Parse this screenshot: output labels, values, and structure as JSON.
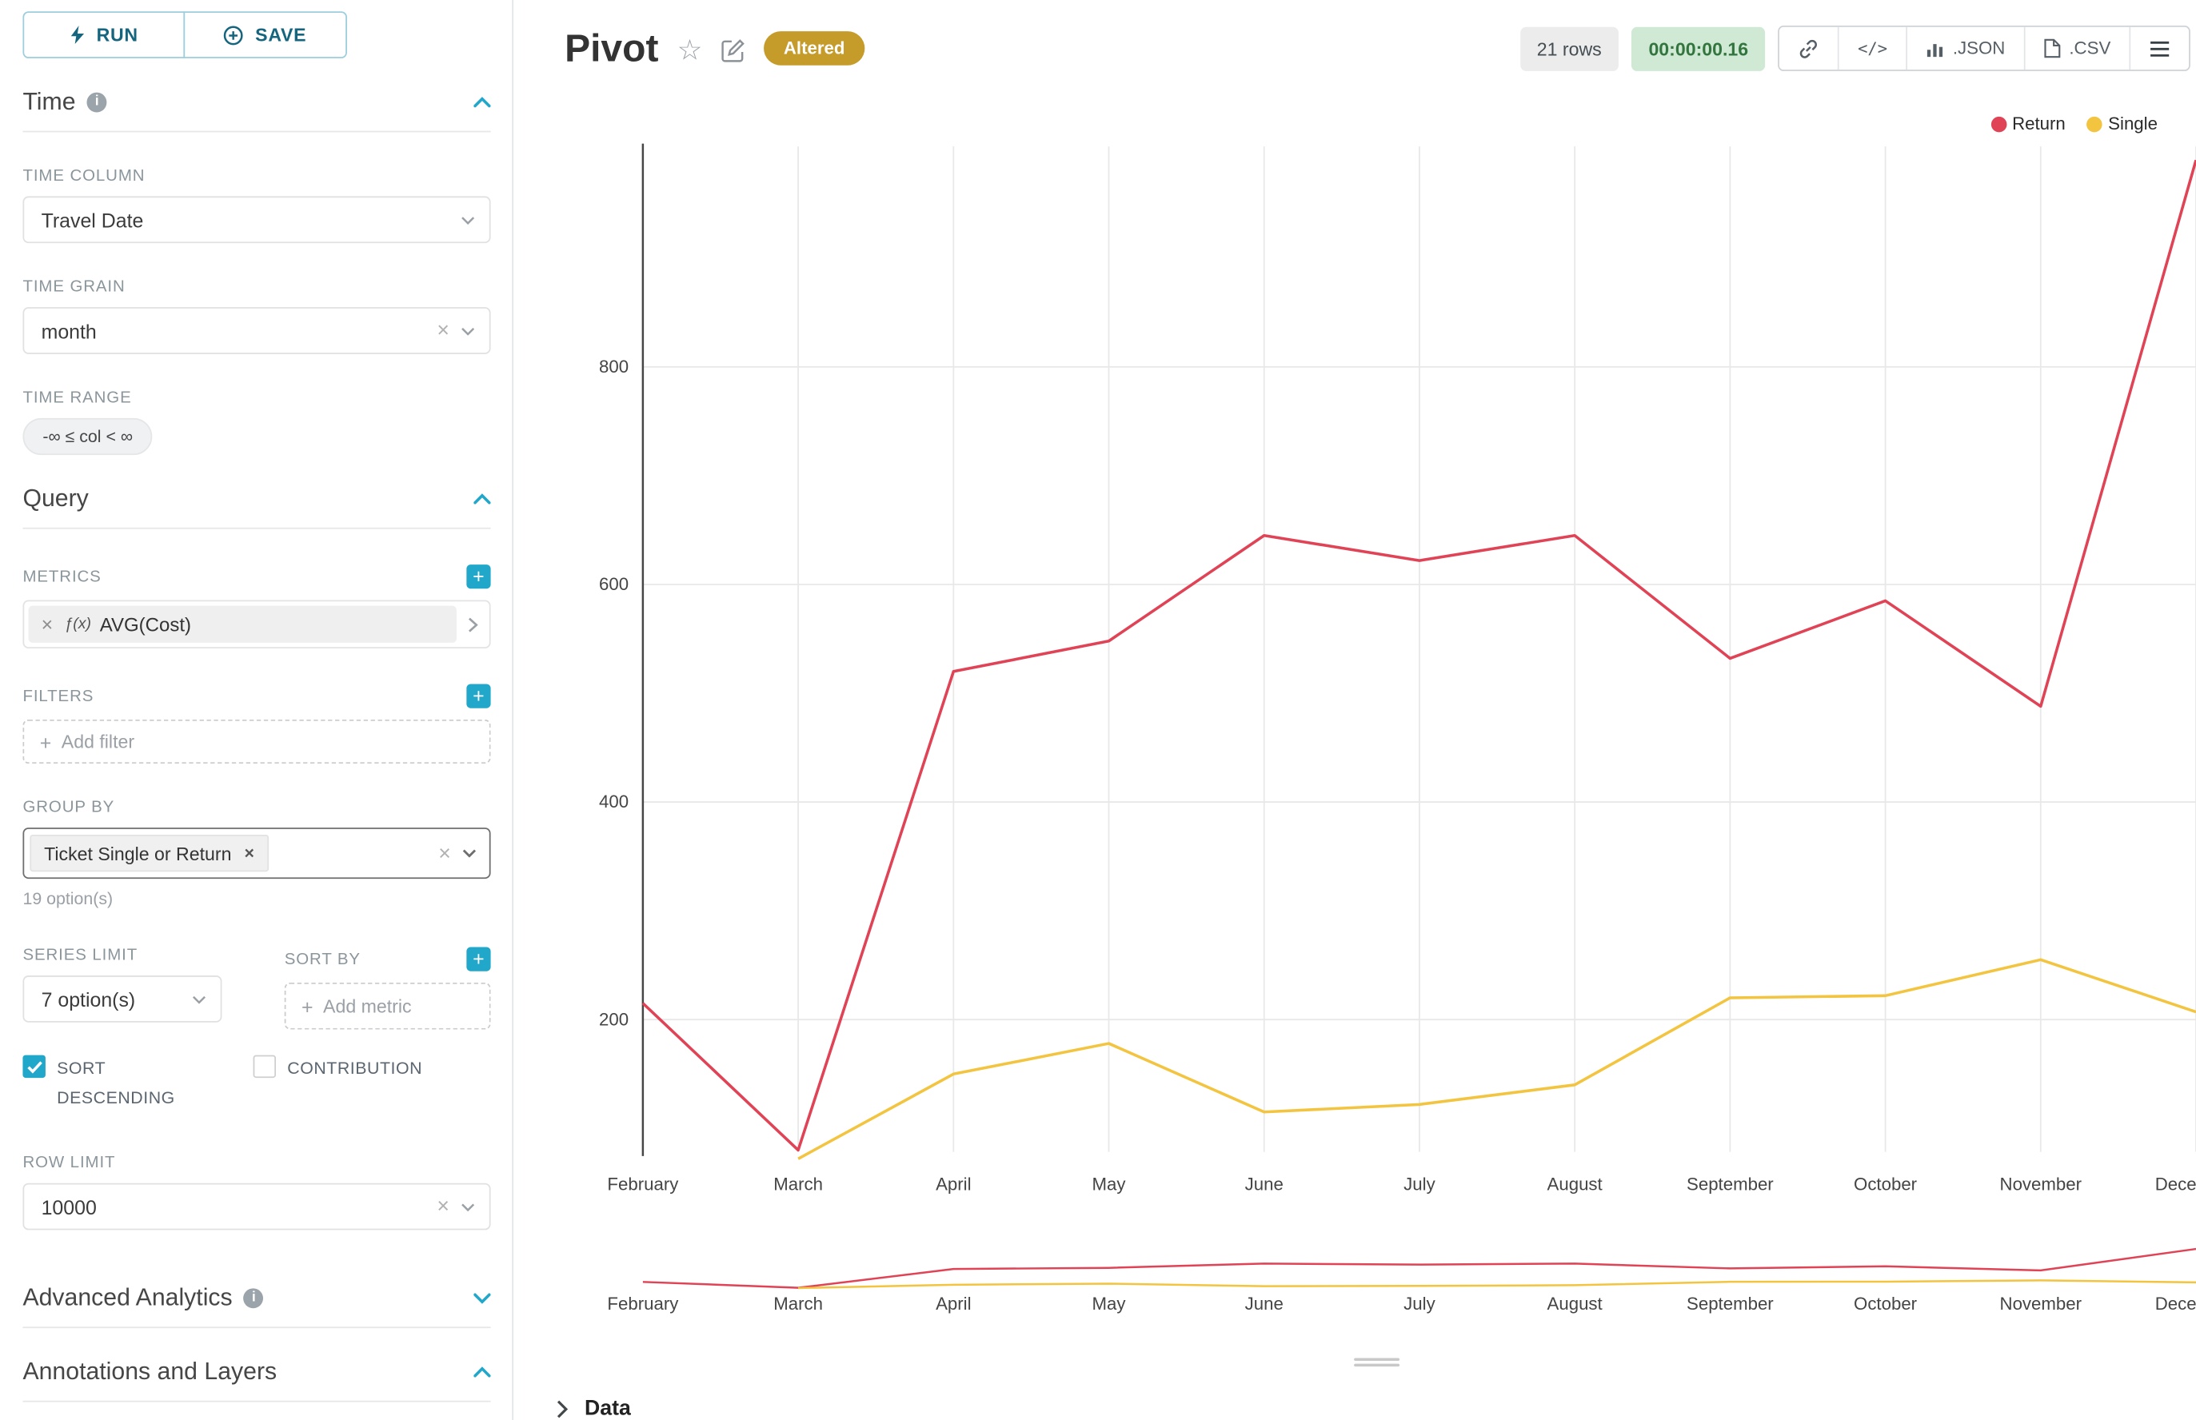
{
  "icons": {
    "plus": "+",
    "close": "×",
    "star": "☆",
    "code": "</>",
    "info": "i"
  },
  "colors": {
    "accent": "#20a7c9",
    "altered_bg": "#c59b29",
    "timer_bg": "#cfe9d4",
    "timer_text": "#33753e"
  },
  "toolbar": {
    "run_label": "RUN",
    "save_label": "SAVE"
  },
  "panels": {
    "time": {
      "title": "Time",
      "time_column_label": "TIME COLUMN",
      "time_column_value": "Travel Date",
      "time_grain_label": "TIME GRAIN",
      "time_grain_value": "month",
      "time_range_label": "TIME RANGE",
      "time_range_value": "-∞ ≤ col < ∞"
    },
    "query": {
      "title": "Query",
      "metrics_label": "METRICS",
      "metric_fx": "ƒ(x)",
      "metric_value": "AVG(Cost)",
      "filters_label": "FILTERS",
      "add_filter_placeholder": "Add filter",
      "group_by_label": "GROUP BY",
      "group_by_token": "Ticket Single or Return",
      "group_by_hint": "19 option(s)",
      "series_limit_label": "SERIES LIMIT",
      "series_limit_value": "7 option(s)",
      "sort_by_label": "SORT BY",
      "sort_by_placeholder": "Add metric",
      "sort_descending_label": "SORT DESCENDING",
      "contribution_label": "CONTRIBUTION",
      "row_limit_label": "ROW LIMIT",
      "row_limit_value": "10000"
    },
    "advanced": {
      "title": "Advanced Analytics"
    },
    "annotations": {
      "title": "Annotations and Layers"
    }
  },
  "header": {
    "title": "Pivot",
    "altered_badge": "Altered",
    "rows_badge": "21 rows",
    "timer_badge": "00:00:00.16",
    "json_label": ".JSON",
    "csv_label": ".CSV"
  },
  "chart_data": {
    "type": "line",
    "title": "Pivot",
    "categories": [
      "February",
      "March",
      "April",
      "May",
      "June",
      "July",
      "August",
      "September",
      "October",
      "November",
      "December"
    ],
    "series": [
      {
        "name": "Return",
        "color": "#e04355",
        "values": [
          215,
          80,
          520,
          548,
          645,
          622,
          645,
          532,
          585,
          488,
          990
        ]
      },
      {
        "name": "Single",
        "color": "#f3c43f",
        "values": [
          null,
          72,
          150,
          178,
          115,
          122,
          140,
          220,
          222,
          255,
          207
        ]
      }
    ],
    "yticks": [
      200,
      400,
      600,
      800
    ],
    "ylim": [
      0,
      1050
    ],
    "xlabel": "",
    "ylabel": "",
    "grid": true,
    "legend_position": "top-right",
    "has_mini_preview": true
  },
  "footer": {
    "data_label": "Data"
  }
}
